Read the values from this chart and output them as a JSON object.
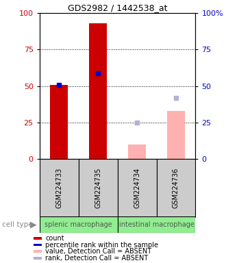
{
  "title": "GDS2982 / 1442538_at",
  "samples": [
    "GSM224733",
    "GSM224735",
    "GSM224734",
    "GSM224736"
  ],
  "cell_type_labels": [
    "splenic macrophage",
    "intestinal macrophage"
  ],
  "count_values": [
    51,
    93,
    null,
    null
  ],
  "count_color": "#cc0000",
  "percentile_values": [
    51,
    59,
    null,
    null
  ],
  "percentile_color": "#0000cc",
  "absent_value_values": [
    null,
    null,
    10,
    33
  ],
  "absent_value_color": "#ffb0b0",
  "absent_rank_values": [
    null,
    null,
    25,
    42
  ],
  "absent_rank_color": "#b0b0d8",
  "ylim": [
    0,
    100
  ],
  "yticks": [
    0,
    25,
    50,
    75,
    100
  ],
  "bar_width": 0.45,
  "sample_bg_color": "#cccccc",
  "cell_type_color": "#90ee90",
  "cell_type_text_color": "#555555",
  "legend_labels": [
    "count",
    "percentile rank within the sample",
    "value, Detection Call = ABSENT",
    "rank, Detection Call = ABSENT"
  ],
  "legend_colors": [
    "#cc0000",
    "#0000cc",
    "#ffb0b0",
    "#b0b0d8"
  ],
  "title_fontsize": 9,
  "tick_fontsize": 8,
  "sample_fontsize": 7,
  "ct_fontsize": 7,
  "legend_fontsize": 7
}
